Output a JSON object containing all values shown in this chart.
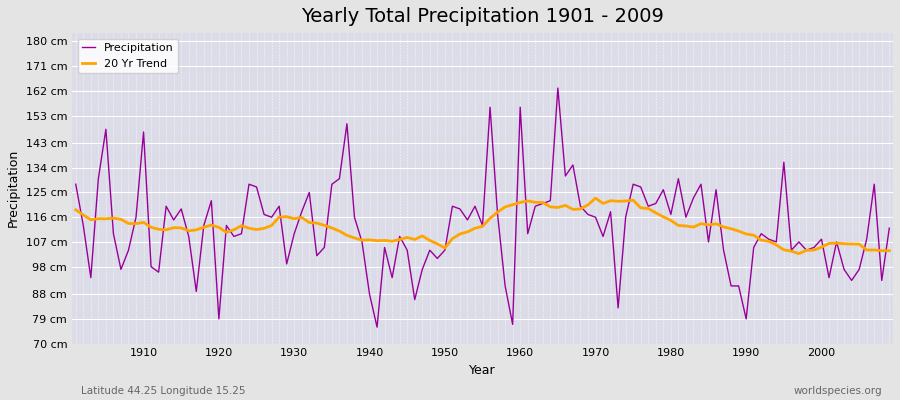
{
  "title": "Yearly Total Precipitation 1901 - 2009",
  "xlabel": "Year",
  "ylabel": "Precipitation",
  "subtitle": "Latitude 44.25 Longitude 15.25",
  "watermark": "worldspecies.org",
  "years": [
    1901,
    1902,
    1903,
    1904,
    1905,
    1906,
    1907,
    1908,
    1909,
    1910,
    1911,
    1912,
    1913,
    1914,
    1915,
    1916,
    1917,
    1918,
    1919,
    1920,
    1921,
    1922,
    1923,
    1924,
    1925,
    1926,
    1927,
    1928,
    1929,
    1930,
    1931,
    1932,
    1933,
    1934,
    1935,
    1936,
    1937,
    1938,
    1939,
    1940,
    1941,
    1942,
    1943,
    1944,
    1945,
    1946,
    1947,
    1948,
    1949,
    1950,
    1951,
    1952,
    1953,
    1954,
    1955,
    1956,
    1957,
    1958,
    1959,
    1960,
    1961,
    1962,
    1963,
    1964,
    1965,
    1966,
    1967,
    1968,
    1969,
    1970,
    1971,
    1972,
    1973,
    1974,
    1975,
    1976,
    1977,
    1978,
    1979,
    1980,
    1981,
    1982,
    1983,
    1984,
    1985,
    1986,
    1987,
    1988,
    1989,
    1990,
    1991,
    1992,
    1993,
    1994,
    1995,
    1996,
    1997,
    1998,
    1999,
    2000,
    2001,
    2002,
    2003,
    2004,
    2005,
    2006,
    2007,
    2008,
    2009
  ],
  "precipitation": [
    128,
    113,
    94,
    130,
    148,
    110,
    97,
    104,
    116,
    147,
    98,
    96,
    120,
    115,
    119,
    109,
    89,
    113,
    122,
    79,
    113,
    109,
    110,
    128,
    127,
    117,
    116,
    120,
    99,
    110,
    118,
    125,
    102,
    105,
    128,
    130,
    150,
    116,
    107,
    88,
    76,
    105,
    94,
    109,
    104,
    86,
    97,
    104,
    101,
    104,
    120,
    119,
    115,
    120,
    113,
    156,
    117,
    91,
    77,
    156,
    110,
    120,
    121,
    122,
    163,
    131,
    135,
    120,
    117,
    116,
    109,
    118,
    83,
    116,
    128,
    127,
    120,
    121,
    126,
    117,
    130,
    116,
    123,
    128,
    107,
    126,
    104,
    91,
    91,
    79,
    105,
    110,
    108,
    107,
    136,
    104,
    107,
    104,
    105,
    108,
    94,
    107,
    97,
    93,
    97,
    108,
    128,
    93,
    112
  ],
  "ylim": [
    70,
    183
  ],
  "yticks": [
    70,
    79,
    88,
    98,
    107,
    116,
    125,
    134,
    143,
    153,
    162,
    171,
    180
  ],
  "ytick_labels": [
    "70 cm",
    "79 cm",
    "88 cm",
    "98 cm",
    "107 cm",
    "116 cm",
    "125 cm",
    "134 cm",
    "143 cm",
    "153 cm",
    "162 cm",
    "171 cm",
    "180 cm"
  ],
  "precip_color": "#990099",
  "trend_color": "#FFA500",
  "fig_bg_color": "#E4E4E4",
  "plot_bg_color": "#DCDCE8",
  "grid_color": "#FFFFFF",
  "title_fontsize": 14,
  "label_fontsize": 9,
  "tick_fontsize": 8,
  "trend_window": 20
}
